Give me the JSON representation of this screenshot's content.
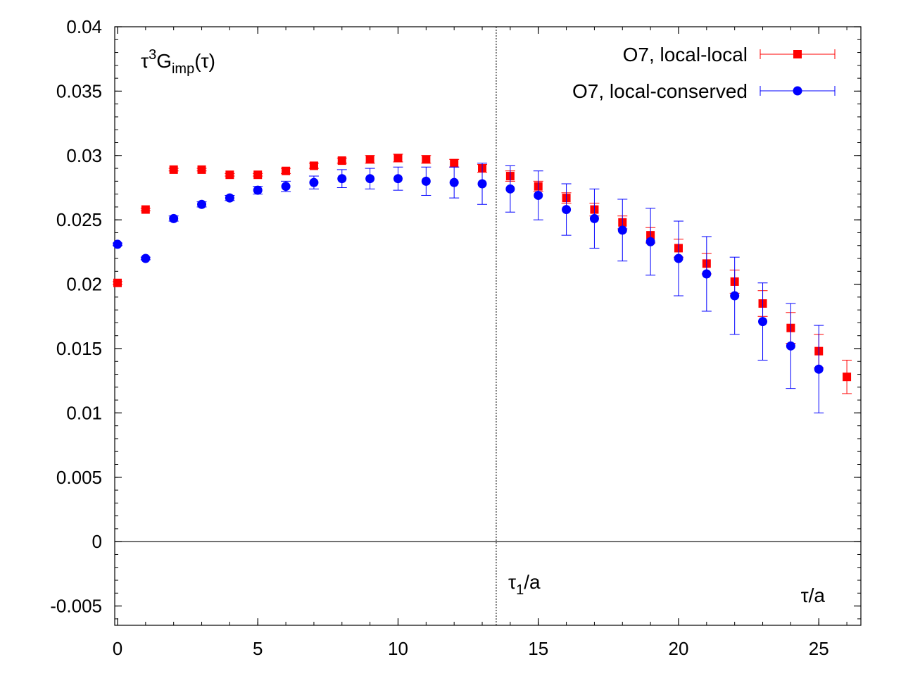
{
  "chart_data": {
    "type": "scatter",
    "title": "",
    "xlabel": "τ/a",
    "ylabel": "",
    "xlim": [
      -0.1,
      26.5
    ],
    "ylim": [
      -0.0065,
      0.04
    ],
    "grid": false,
    "legend_position": "top-right",
    "x_ticks": [
      {
        "value": 0,
        "label": "0"
      },
      {
        "value": 5,
        "label": "5"
      },
      {
        "value": 10,
        "label": "10"
      },
      {
        "value": 15,
        "label": "15"
      },
      {
        "value": 20,
        "label": "20"
      },
      {
        "value": 25,
        "label": "25"
      }
    ],
    "y_ticks": [
      {
        "value": -0.005,
        "label": "-0.005"
      },
      {
        "value": 0,
        "label": "0"
      },
      {
        "value": 0.005,
        "label": "0.005"
      },
      {
        "value": 0.01,
        "label": "0.01"
      },
      {
        "value": 0.015,
        "label": "0.015"
      },
      {
        "value": 0.02,
        "label": "0.02"
      },
      {
        "value": 0.025,
        "label": "0.025"
      },
      {
        "value": 0.03,
        "label": "0.03"
      },
      {
        "value": 0.035,
        "label": "0.035"
      },
      {
        "value": 0.04,
        "label": "0.04"
      }
    ],
    "x_minor_step": 1,
    "y_minor_step": 0.001,
    "hlines": [
      {
        "y": 0
      }
    ],
    "vline": {
      "x": 13.5,
      "label_base": "τ",
      "label_sub": "1",
      "label_tail": "/a"
    },
    "ylabel_inset": {
      "base": "τ",
      "sup": "3",
      "mid": "G",
      "sub": "imp",
      "tail": "(τ)"
    },
    "xlabel_inset": "τ/a",
    "series": [
      {
        "name": "O7, local-local",
        "color": "#ff0000",
        "marker": "square",
        "x": [
          0,
          1,
          2,
          3,
          4,
          5,
          6,
          7,
          8,
          9,
          10,
          11,
          12,
          13,
          14,
          15,
          16,
          17,
          18,
          19,
          20,
          21,
          22,
          23,
          24,
          25,
          26
        ],
        "y": [
          0.0201,
          0.0258,
          0.0289,
          0.0289,
          0.0285,
          0.0285,
          0.0288,
          0.0292,
          0.0296,
          0.0297,
          0.0298,
          0.0297,
          0.0294,
          0.029,
          0.0284,
          0.0276,
          0.0267,
          0.0258,
          0.0248,
          0.0238,
          0.0228,
          0.0216,
          0.0202,
          0.0185,
          0.0166,
          0.0148,
          0.0128
        ],
        "err": [
          0.0001,
          0.0001,
          0.0001,
          0.0001,
          0.0001,
          0.0001,
          0.0002,
          0.0002,
          0.0002,
          0.0003,
          0.0003,
          0.0003,
          0.0003,
          0.0003,
          0.0004,
          0.0004,
          0.0004,
          0.0005,
          0.0005,
          0.0006,
          0.0007,
          0.0008,
          0.0009,
          0.001,
          0.0012,
          0.0013,
          0.0013
        ]
      },
      {
        "name": "O7, local-conserved",
        "color": "#0000ff",
        "marker": "circle",
        "x": [
          0,
          1,
          2,
          3,
          4,
          5,
          6,
          7,
          8,
          9,
          10,
          11,
          12,
          13,
          14,
          15,
          16,
          17,
          18,
          19,
          20,
          21,
          22,
          23,
          24,
          25
        ],
        "y": [
          0.0231,
          0.022,
          0.0251,
          0.0262,
          0.0267,
          0.0273,
          0.0276,
          0.0279,
          0.0282,
          0.0282,
          0.0282,
          0.028,
          0.0279,
          0.0278,
          0.0274,
          0.0269,
          0.0258,
          0.0251,
          0.0242,
          0.0233,
          0.022,
          0.0208,
          0.0191,
          0.0171,
          0.0152,
          0.0134
        ],
        "err": [
          0.0001,
          0.0001,
          0.0002,
          0.0002,
          0.0002,
          0.0003,
          0.0004,
          0.0005,
          0.0007,
          0.0008,
          0.0009,
          0.0011,
          0.0012,
          0.0016,
          0.0018,
          0.0019,
          0.002,
          0.0023,
          0.0024,
          0.0026,
          0.0029,
          0.0029,
          0.003,
          0.003,
          0.0033,
          0.0034
        ]
      }
    ]
  }
}
